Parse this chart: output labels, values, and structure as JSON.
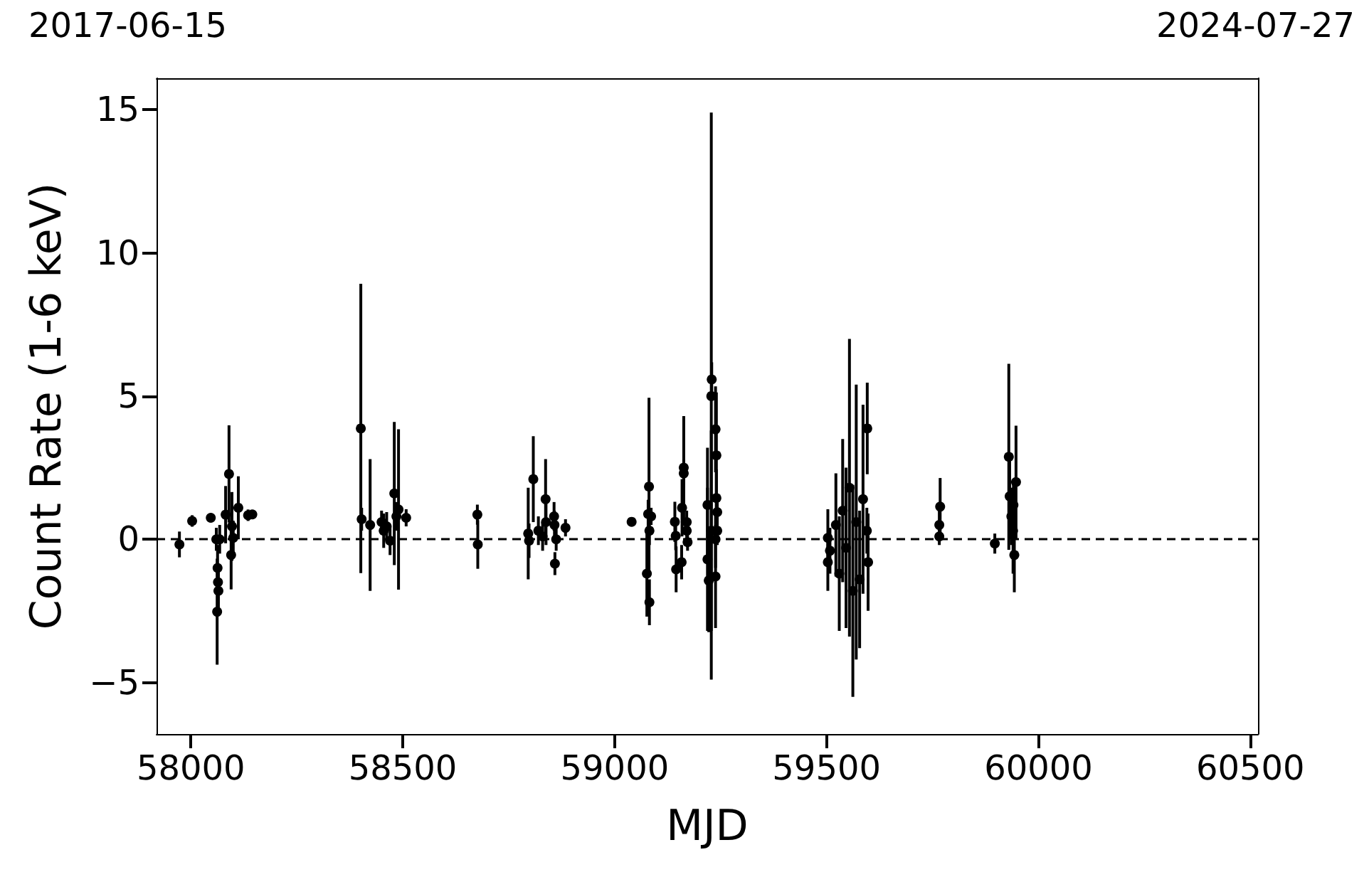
{
  "chart_data": {
    "type": "scatter",
    "xlabel": "MJD",
    "ylabel": "Count Rate (1-6 keV)",
    "annotations": [
      "2017-06-15",
      "2024-07-27"
    ],
    "xlim": [
      57919,
      60518
    ],
    "xticks": [
      58000,
      58500,
      59000,
      59500,
      60000,
      60500
    ],
    "ylim": [
      -6.8,
      16.1
    ],
    "yticks": [
      -5,
      0,
      5,
      10,
      15
    ],
    "grid": false,
    "legend": false,
    "marker": "circle",
    "ref_lines": [
      {
        "axis": "y",
        "value": 0,
        "label": null,
        "color": "#000000",
        "line_style": "dashed"
      }
    ],
    "series": [
      {
        "color": "#000000",
        "x": [
          57973,
          58003,
          58047,
          58060,
          58068,
          58062,
          58063,
          58064,
          58065,
          58090,
          58082,
          58097,
          58095,
          58100,
          58112,
          58135,
          58145,
          58401,
          58403,
          58423,
          58450,
          58455,
          58462,
          58470,
          58480,
          58490,
          58485,
          58508,
          58676,
          58677,
          58796,
          58798,
          58808,
          58820,
          58830,
          58837,
          58838,
          58857,
          58858,
          58859,
          58862,
          58884,
          59040,
          59081,
          59079,
          59086,
          59082,
          59076,
          59082,
          59142,
          59144,
          59145,
          59159,
          59163,
          59163,
          59170,
          59170,
          59158,
          59172,
          59228,
          59229,
          59238,
          59240,
          59240,
          59219,
          59242,
          59228,
          59242,
          59238,
          59219,
          59222,
          59238,
          59503,
          59503,
          59508,
          59522,
          59530,
          59538,
          59546,
          59554,
          59562,
          59570,
          59578,
          59586,
          59596,
          59598,
          59595,
          59768,
          59766,
          59766,
          59897,
          59930,
          59932,
          59947,
          59943,
          59936,
          59940,
          59941
        ],
        "values": [
          -0.18,
          0.64,
          0.75,
          0.0,
          0.0,
          -2.53,
          -1.0,
          -1.5,
          -1.8,
          2.28,
          0.86,
          0.45,
          -0.55,
          0.05,
          1.1,
          0.84,
          0.87,
          3.87,
          0.7,
          0.5,
          0.6,
          0.3,
          0.45,
          -0.05,
          1.6,
          1.04,
          0.8,
          0.75,
          0.86,
          -0.18,
          0.2,
          -0.05,
          2.1,
          0.3,
          0.1,
          1.4,
          0.6,
          0.8,
          0.5,
          -0.85,
          0.0,
          0.4,
          0.61,
          1.84,
          0.88,
          0.8,
          0.3,
          -1.2,
          -2.2,
          0.61,
          0.12,
          -1.05,
          1.1,
          2.5,
          2.3,
          0.6,
          0.3,
          -0.8,
          -0.1,
          5.0,
          5.58,
          3.84,
          2.93,
          1.44,
          1.2,
          0.95,
          0.3,
          0.3,
          0.0,
          -0.7,
          -1.44,
          -1.3,
          0.05,
          -0.8,
          -0.4,
          0.5,
          -1.2,
          1.0,
          -0.3,
          1.8,
          -1.8,
          0.6,
          -1.4,
          1.4,
          3.87,
          -0.8,
          0.3,
          1.14,
          0.5,
          0.1,
          -0.15,
          2.88,
          1.5,
          2.0,
          -0.55,
          0.8,
          0.3,
          1.2
        ],
        "errors": [
          0.45,
          0.2,
          0.15,
          0.4,
          0.5,
          1.85,
          0.8,
          0.6,
          0.7,
          1.7,
          1.0,
          1.2,
          1.2,
          0.6,
          1.1,
          0.2,
          0.15,
          5.05,
          0.4,
          2.3,
          0.4,
          0.6,
          0.5,
          0.5,
          2.5,
          2.8,
          0.5,
          0.3,
          0.35,
          0.85,
          1.6,
          0.6,
          1.5,
          0.5,
          0.5,
          1.4,
          0.8,
          0.5,
          0.5,
          0.4,
          0.4,
          0.3,
          0.1,
          3.1,
          0.5,
          0.3,
          0.5,
          1.5,
          0.8,
          0.7,
          0.5,
          0.8,
          1.0,
          1.8,
          0.5,
          0.4,
          0.4,
          0.6,
          0.3,
          9.9,
          0.6,
          1.5,
          2.2,
          1.0,
          2.0,
          0.6,
          3.5,
          0.5,
          1.0,
          2.5,
          1.8,
          1.8,
          1.0,
          1.0,
          0.8,
          1.8,
          2.0,
          2.5,
          2.8,
          5.2,
          3.7,
          4.8,
          2.4,
          3.3,
          1.6,
          1.7,
          0.8,
          1.0,
          0.5,
          0.3,
          0.35,
          3.25,
          1.5,
          1.97,
          1.3,
          1.0,
          1.5,
          0.8
        ]
      }
    ]
  }
}
